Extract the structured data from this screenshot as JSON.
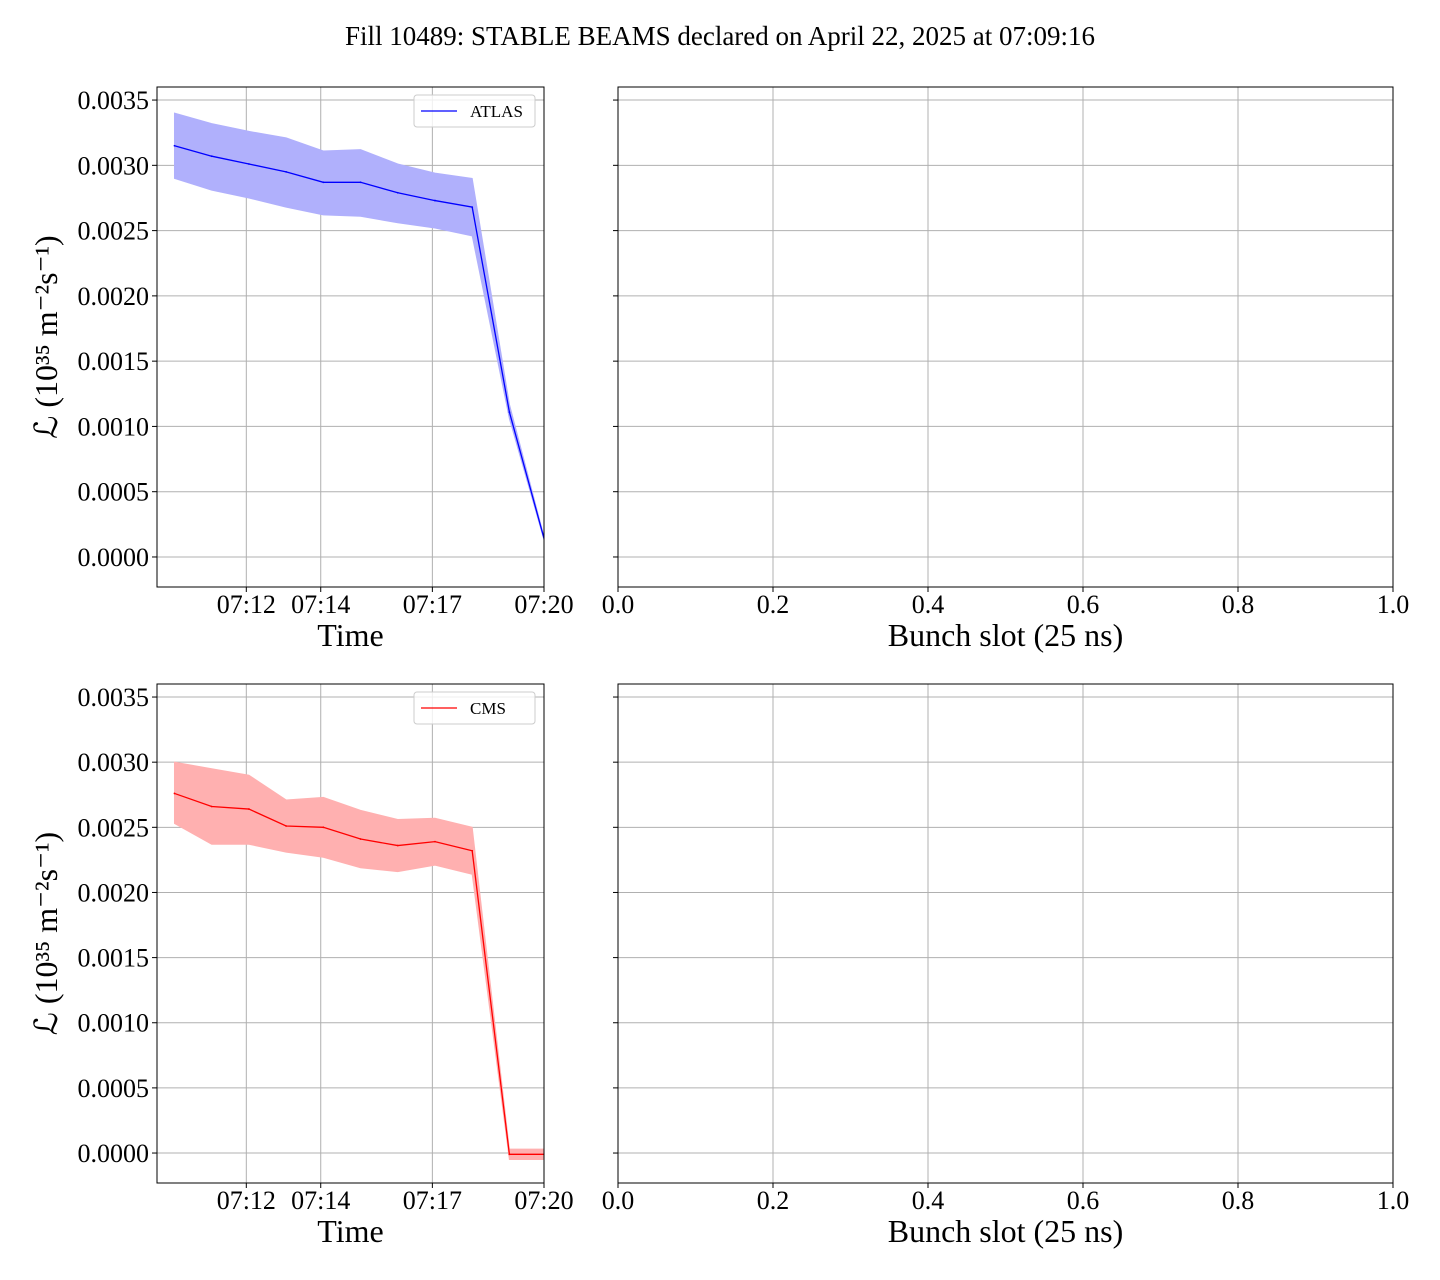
{
  "suptitle": "Fill 10489: STABLE BEAMS declared on April 22, 2025 at 07:09:16",
  "colors": {
    "atlas": "#0000ff",
    "atlas_fill": "#b0b0fc",
    "cms": "#ff0000",
    "cms_fill": "#ffb0b0",
    "grid": "#b0b0b0"
  },
  "chart_data": [
    {
      "type": "line",
      "position": "top-left",
      "xlabel": "Time",
      "ylabel": "ℒ (10³⁵ m⁻²s⁻¹)",
      "x_ticks": [
        "07:12",
        "07:14",
        "07:17",
        "07:20"
      ],
      "x_tick_minutes": [
        12,
        14,
        17,
        20
      ],
      "xlim_minutes": [
        9.6,
        20.0
      ],
      "ylim": [
        -0.00023,
        0.0036
      ],
      "y_ticks": [
        "0.0000",
        "0.0005",
        "0.0010",
        "0.0015",
        "0.0020",
        "0.0025",
        "0.0030",
        "0.0035"
      ],
      "grid": true,
      "legend_position": "upper right",
      "series": [
        {
          "name": "ATLAS",
          "color_key": "atlas",
          "x_minutes": [
            10.07,
            11.07,
            12.07,
            13.07,
            14.07,
            15.07,
            16.07,
            17.07,
            18.07,
            19.07,
            20.07
          ],
          "values": [
            0.00315,
            0.00307,
            0.00301,
            0.00295,
            0.00287,
            0.00287,
            0.00279,
            0.00273,
            0.00268,
            0.00111,
            7e-05
          ],
          "lower": [
            0.0029,
            0.00281,
            0.00275,
            0.00268,
            0.00262,
            0.00261,
            0.00256,
            0.00252,
            0.00246,
            0.00106,
            6e-05
          ],
          "upper": [
            0.0034,
            0.00332,
            0.00326,
            0.00321,
            0.00311,
            0.00312,
            0.00301,
            0.00294,
            0.0029,
            0.00117,
            8e-05
          ]
        }
      ]
    },
    {
      "type": "line",
      "position": "top-right",
      "xlabel": "Bunch slot (25 ns)",
      "x_ticks": [
        "0.0",
        "0.2",
        "0.4",
        "0.6",
        "0.8",
        "1.0"
      ],
      "xlim": [
        0,
        1
      ],
      "ylim": [
        -0.00023,
        0.0036
      ],
      "grid": true,
      "series": []
    },
    {
      "type": "line",
      "position": "bottom-left",
      "xlabel": "Time",
      "ylabel": "ℒ (10³⁵ m⁻²s⁻¹)",
      "x_ticks": [
        "07:12",
        "07:14",
        "07:17",
        "07:20"
      ],
      "x_tick_minutes": [
        12,
        14,
        17,
        20
      ],
      "xlim_minutes": [
        9.6,
        20.0
      ],
      "ylim": [
        -0.00023,
        0.0036
      ],
      "y_ticks": [
        "0.0000",
        "0.0005",
        "0.0010",
        "0.0015",
        "0.0020",
        "0.0025",
        "0.0030",
        "0.0035"
      ],
      "grid": true,
      "legend_position": "upper right",
      "series": [
        {
          "name": "CMS",
          "color_key": "cms",
          "x_minutes": [
            10.07,
            11.07,
            12.07,
            13.07,
            14.07,
            15.07,
            16.07,
            17.07,
            18.07,
            19.07,
            20.07
          ],
          "values": [
            0.00276,
            0.00266,
            0.00264,
            0.00251,
            0.0025,
            0.00241,
            0.00236,
            0.00239,
            0.00232,
            -1e-05,
            -1e-05
          ],
          "lower": [
            0.00253,
            0.00237,
            0.00237,
            0.00231,
            0.00227,
            0.00219,
            0.00216,
            0.00221,
            0.00214,
            -5e-05,
            -5e-05
          ],
          "upper": [
            0.003,
            0.00295,
            0.0029,
            0.00271,
            0.00273,
            0.00263,
            0.00256,
            0.00257,
            0.0025,
            3e-05,
            3e-05
          ]
        }
      ]
    },
    {
      "type": "line",
      "position": "bottom-right",
      "xlabel": "Bunch slot (25 ns)",
      "x_ticks": [
        "0.0",
        "0.2",
        "0.4",
        "0.6",
        "0.8",
        "1.0"
      ],
      "xlim": [
        0,
        1
      ],
      "ylim": [
        -0.00023,
        0.0036
      ],
      "grid": true,
      "series": []
    }
  ]
}
